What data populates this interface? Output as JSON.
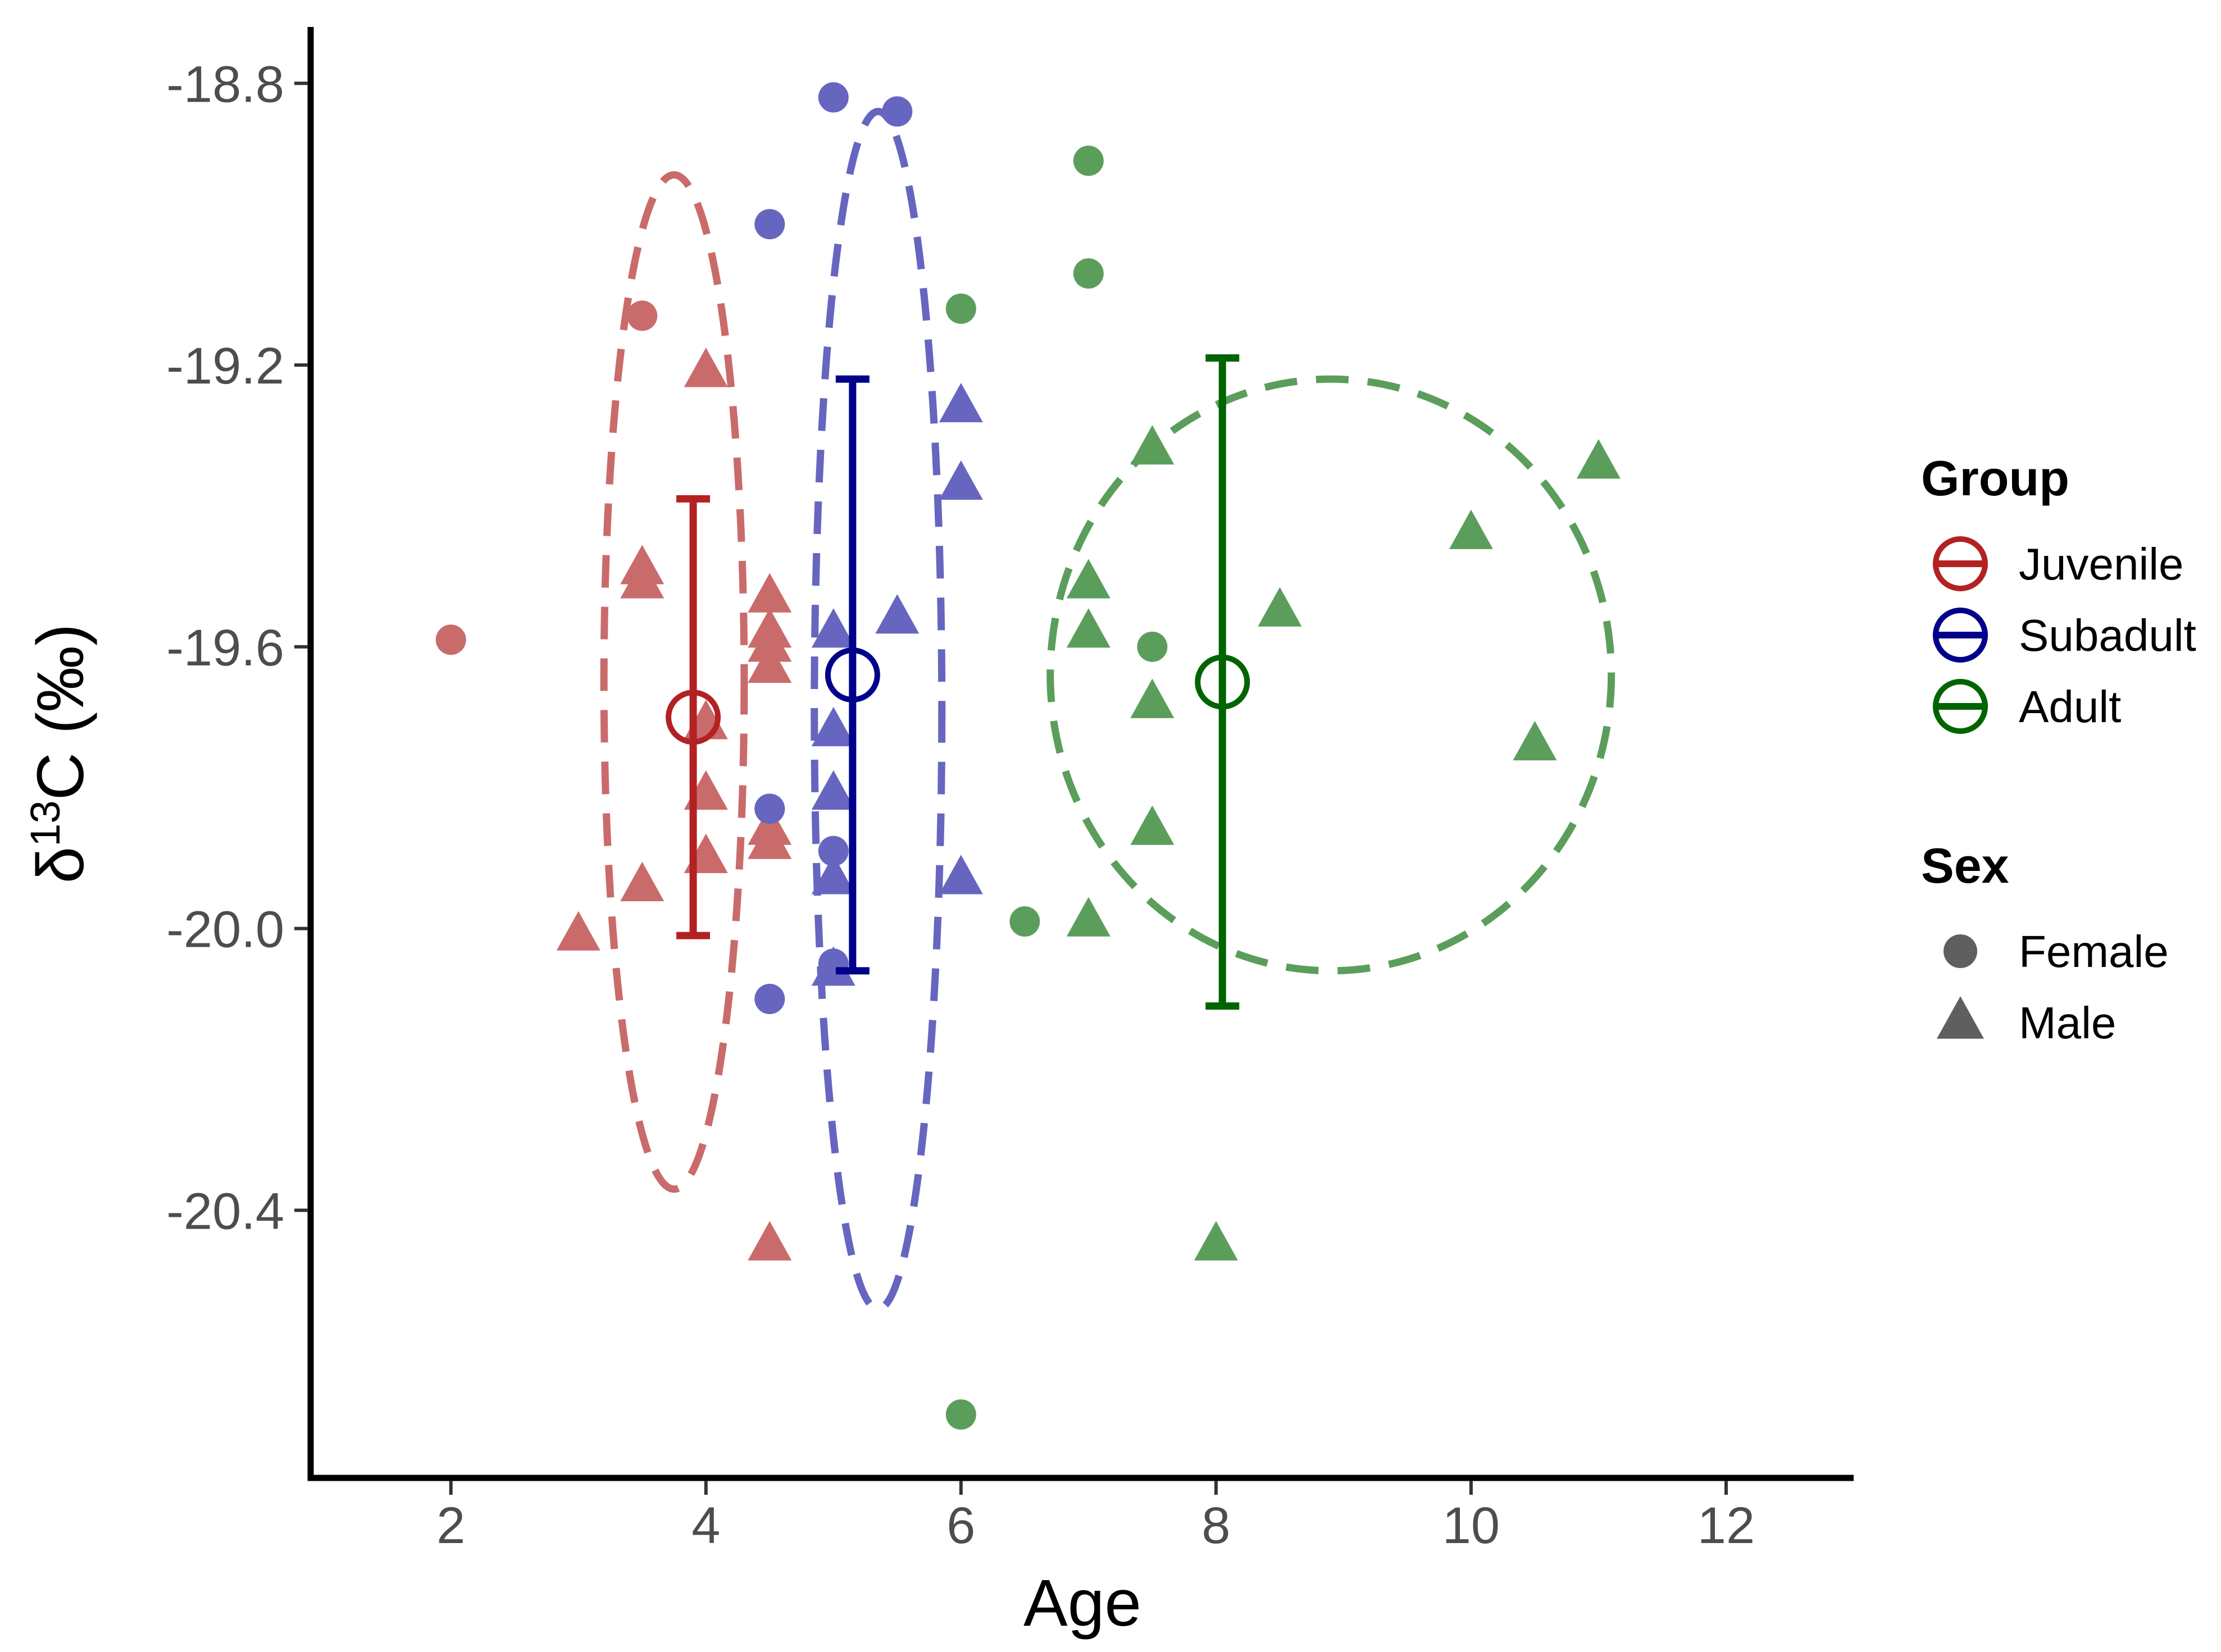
{
  "chart_data": {
    "type": "scatter",
    "xlabel": "Age",
    "ylabel_parts": {
      "prefix": "δ",
      "superscript": "13",
      "suffix": "C (‰)"
    },
    "xlim": [
      0.9,
      13.0
    ],
    "ylim": [
      -20.78,
      -18.72
    ],
    "x_ticks": [
      2,
      4,
      6,
      8,
      10,
      12
    ],
    "x_tick_labels": [
      "2",
      "4",
      "6",
      "8",
      "10",
      "12"
    ],
    "y_ticks": [
      -18.8,
      -19.2,
      -19.6,
      -20.0,
      -20.4
    ],
    "y_tick_labels": [
      "-18.8",
      "-19.2",
      "-19.6",
      "-20.0",
      "-20.4"
    ],
    "grid": false,
    "colors": {
      "Juvenile": {
        "mark": "#ca6b6b",
        "summary": "#b22222"
      },
      "Subadult": {
        "mark": "#6666c0",
        "summary": "#00008b"
      },
      "Adult": {
        "mark": "#5b9e5b",
        "summary": "#006400"
      }
    },
    "legend": {
      "placement": "right",
      "group_title": "Group",
      "groups": [
        "Juvenile",
        "Subadult",
        "Adult"
      ],
      "sex_title": "Sex",
      "sexes": [
        "Female",
        "Male"
      ]
    },
    "series": [
      {
        "name": "Juvenile",
        "points": [
          {
            "x": 2,
            "y": -19.59,
            "sex": "Female"
          },
          {
            "x": 3.5,
            "y": -19.13,
            "sex": "Female"
          },
          {
            "x": 4.5,
            "y": -19.83,
            "sex": "Female"
          },
          {
            "x": 4,
            "y": -19.21,
            "sex": "Male"
          },
          {
            "x": 3.5,
            "y": -19.49,
            "sex": "Male"
          },
          {
            "x": 3.5,
            "y": -19.51,
            "sex": "Male"
          },
          {
            "x": 3.5,
            "y": -19.94,
            "sex": "Male"
          },
          {
            "x": 3,
            "y": -20.01,
            "sex": "Male"
          },
          {
            "x": 4,
            "y": -19.71,
            "sex": "Male"
          },
          {
            "x": 4,
            "y": -19.81,
            "sex": "Male"
          },
          {
            "x": 4,
            "y": -19.9,
            "sex": "Male"
          },
          {
            "x": 4.5,
            "y": -19.53,
            "sex": "Male"
          },
          {
            "x": 4.5,
            "y": -19.58,
            "sex": "Male"
          },
          {
            "x": 4.5,
            "y": -19.6,
            "sex": "Male"
          },
          {
            "x": 4.5,
            "y": -19.63,
            "sex": "Male"
          },
          {
            "x": 4.5,
            "y": -19.86,
            "sex": "Male"
          },
          {
            "x": 4.5,
            "y": -19.88,
            "sex": "Male"
          },
          {
            "x": 4.5,
            "y": -20.45,
            "sex": "Male"
          }
        ],
        "summary": {
          "x": 3.9,
          "mean": -19.7,
          "lower": -20.01,
          "upper": -19.39
        },
        "ellipse": {
          "cx": 3.75,
          "cy": -19.65,
          "rx": 0.55,
          "ry": 0.72
        }
      },
      {
        "name": "Subadult",
        "points": [
          {
            "x": 5,
            "y": -18.82,
            "sex": "Female"
          },
          {
            "x": 5.5,
            "y": -18.84,
            "sex": "Female"
          },
          {
            "x": 4.5,
            "y": -19.0,
            "sex": "Female"
          },
          {
            "x": 4.5,
            "y": -19.83,
            "sex": "Female"
          },
          {
            "x": 5,
            "y": -19.89,
            "sex": "Female"
          },
          {
            "x": 5,
            "y": -20.05,
            "sex": "Female"
          },
          {
            "x": 4.5,
            "y": -20.1,
            "sex": "Female"
          },
          {
            "x": 6,
            "y": -19.26,
            "sex": "Male"
          },
          {
            "x": 6,
            "y": -19.37,
            "sex": "Male"
          },
          {
            "x": 5.5,
            "y": -19.56,
            "sex": "Male"
          },
          {
            "x": 5,
            "y": -19.58,
            "sex": "Male"
          },
          {
            "x": 5,
            "y": -19.72,
            "sex": "Male"
          },
          {
            "x": 5,
            "y": -19.81,
            "sex": "Male"
          },
          {
            "x": 5,
            "y": -19.93,
            "sex": "Male"
          },
          {
            "x": 6,
            "y": -19.93,
            "sex": "Male"
          },
          {
            "x": 5,
            "y": -20.06,
            "sex": "Male"
          }
        ],
        "summary": {
          "x": 5.15,
          "mean": -19.64,
          "lower": -20.06,
          "upper": -19.22
        },
        "ellipse": {
          "cx": 5.35,
          "cy": -19.69,
          "rx": 0.5,
          "ry": 0.85
        }
      },
      {
        "name": "Adult",
        "points": [
          {
            "x": 7,
            "y": -18.91,
            "sex": "Female"
          },
          {
            "x": 7,
            "y": -19.07,
            "sex": "Female"
          },
          {
            "x": 6,
            "y": -19.12,
            "sex": "Female"
          },
          {
            "x": 7.5,
            "y": -19.6,
            "sex": "Female"
          },
          {
            "x": 6.5,
            "y": -19.99,
            "sex": "Female"
          },
          {
            "x": 6,
            "y": -20.69,
            "sex": "Female"
          },
          {
            "x": 11,
            "y": -19.34,
            "sex": "Male"
          },
          {
            "x": 7.5,
            "y": -19.32,
            "sex": "Male"
          },
          {
            "x": 10,
            "y": -19.44,
            "sex": "Male"
          },
          {
            "x": 7,
            "y": -19.51,
            "sex": "Male"
          },
          {
            "x": 8.5,
            "y": -19.55,
            "sex": "Male"
          },
          {
            "x": 7,
            "y": -19.58,
            "sex": "Male"
          },
          {
            "x": 7.5,
            "y": -19.68,
            "sex": "Male"
          },
          {
            "x": 10.5,
            "y": -19.74,
            "sex": "Male"
          },
          {
            "x": 7.5,
            "y": -19.86,
            "sex": "Male"
          },
          {
            "x": 7,
            "y": -19.99,
            "sex": "Male"
          },
          {
            "x": 8,
            "y": -20.45,
            "sex": "Male"
          }
        ],
        "summary": {
          "x": 8.05,
          "mean": -19.65,
          "lower": -20.11,
          "upper": -19.19
        },
        "ellipse": {
          "cx": 8.9,
          "cy": -19.64,
          "rx": 2.2,
          "ry": 0.42
        }
      }
    ]
  }
}
